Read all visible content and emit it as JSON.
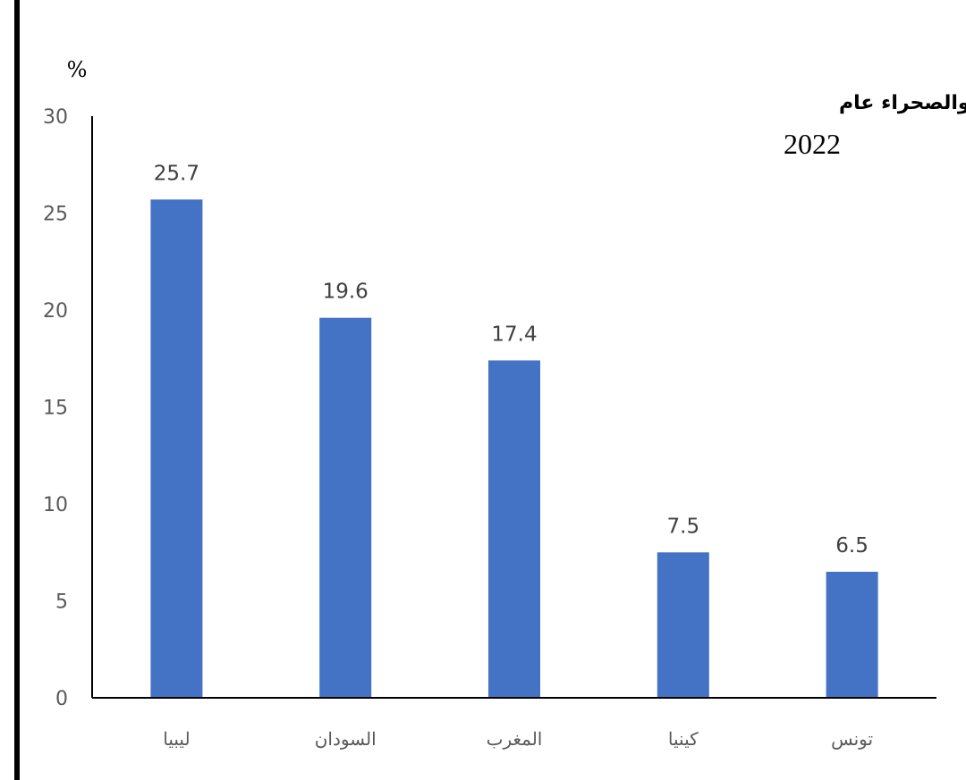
{
  "chart_data": {
    "type": "bar",
    "title": "التوزيع النسبى لأهم صادرات مصر ودول الساحل والصحراء عام",
    "subtitle": "2022",
    "ylabel": "%",
    "xlabel": "",
    "ylim": [
      0,
      30
    ],
    "yticks": [
      0,
      5,
      10,
      15,
      20,
      25,
      30
    ],
    "grid": false,
    "categories": [
      "ليبيا",
      "السودان",
      "المغرب",
      "كينيا",
      "تونس"
    ],
    "values": [
      25.7,
      19.6,
      17.4,
      7.5,
      6.5
    ],
    "data_labels": [
      "25.7",
      "19.6",
      "17.4",
      "7.5",
      "6.5"
    ],
    "bar_color": "#4472C4"
  }
}
